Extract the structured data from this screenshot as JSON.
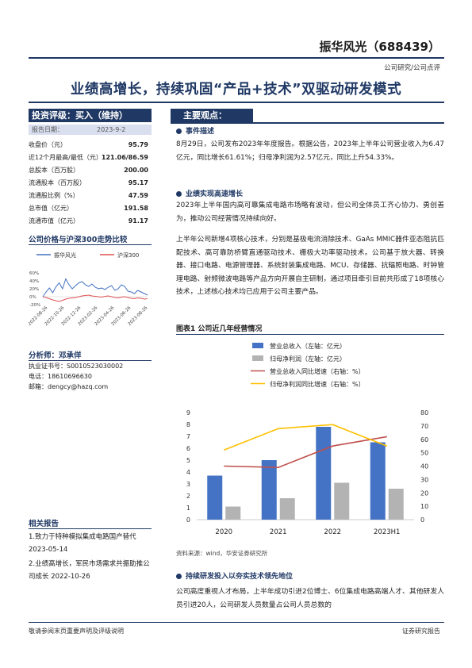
{
  "header": {
    "company": "振华风光（688439）",
    "category": "公司研究/公司点评",
    "title": "业绩高增长，持续巩固“产品+技术”双驱动研发模式"
  },
  "rating": {
    "label": "投资评级：买入（维持）",
    "date_label": "报告日期：",
    "date_value": "2023-9-2"
  },
  "stats": [
    {
      "label": "收盘价（元）",
      "value": "95.79"
    },
    {
      "label": "近12个月最高/最低（元）",
      "value": "121.06/86.59"
    },
    {
      "label": "总股本（百万股）",
      "value": "200.00"
    },
    {
      "label": "流通股本（百万股）",
      "value": "95.17"
    },
    {
      "label": "流通股比例（%）",
      "value": "47.59"
    },
    {
      "label": "总市值（亿元）",
      "value": "191.58"
    },
    {
      "label": "流通市值（亿元）",
      "value": "91.17"
    }
  ],
  "price_chart": {
    "title": "公司价格与沪深300走势比较",
    "legend": [
      "振华风光",
      "沪深300"
    ],
    "yticks": [
      "60%",
      "40%",
      "20%",
      "0%",
      "-20%"
    ],
    "xticks": [
      "2022-08-26",
      "2022-10-26",
      "2022-12-26",
      "2023-02-26",
      "2023-04-26",
      "2023-06-26",
      "2023-08-26"
    ],
    "colors": {
      "company": "#4472c4",
      "index": "#e05252"
    },
    "company_pct": [
      0,
      12,
      22,
      10,
      25,
      35,
      20,
      45,
      30,
      20,
      28,
      35,
      38,
      30,
      26,
      32,
      24,
      20,
      22,
      18,
      24,
      28,
      16,
      20,
      30,
      26,
      14,
      12,
      8,
      16,
      12,
      8,
      4
    ],
    "index_pct": [
      0,
      -2,
      -5,
      -8,
      -10,
      -12,
      -9,
      -6,
      -4,
      -3,
      -2,
      0,
      2,
      3,
      4,
      2,
      1,
      0,
      -1,
      1,
      2,
      0,
      -2,
      -3,
      -1,
      0,
      -2,
      -4,
      -5,
      -3,
      -4,
      -6,
      -5
    ]
  },
  "analyst": {
    "title": "分析师：邓承佯",
    "cert": "执业证书号：S0010523030002",
    "phone": "电话：18610696630",
    "email": "邮箱：dengcy@hazq.com"
  },
  "related": {
    "title": "相关报告",
    "items": [
      "1.致力于特种模拟集成电路国产替代 2023-05-14",
      "2.业绩高增长，军民市场需求共振助推公司成长 2022-10-26"
    ]
  },
  "main": {
    "heading": "主要观点：",
    "sections": [
      {
        "title": "事件描述",
        "paragraphs": [
          "8月29日，公司发布2023年年度报告。根据公告，2023年上半年公司营业收入为6.47亿元，同比增长61.61%；归母净利润为2.57亿元，同比上升54.33%。"
        ]
      },
      {
        "title": "业绩实现高速增长",
        "paragraphs": [
          "2023年上半年国内高可靠集成电路市场略有波动，但公司全体员工齐心协力、勇创善为，推动公司经营情况持续向好。",
          "上半年公司新增4项核心技术，分别是基极电流消除技术、GaAs MMIC器件亚态阻抗匹配技术、高可靠防桥臂直通驱动技术、栅极大功率驱动技术。公司基于放大器、转换器、接口电路、电源管理器、系统封装集成电路、MCU、存储器、抗辐照电路、时钟管理电路、射频微波电路等产品方向开展自主研制，通过项目牵引目前共形成了18项核心技术，上述核心技术均已应用于公司主要产品。"
        ]
      },
      {
        "title": "持续研发投入以夯实技术领先地位",
        "paragraphs": [
          "公司高度重视人才布局，上半年成功引进2位博士、6位集成电路高端人才、其他研发人员引进20人，公司研发人员数量占公司人员总数的"
        ]
      }
    ]
  },
  "figure": {
    "title": "图表1 公司近几年经营情况",
    "source": "资料来源：wind，华安证券研究所"
  },
  "chart_data": {
    "type": "bar",
    "categories": [
      "2020",
      "2021",
      "2022",
      "2023H1"
    ],
    "series": [
      {
        "name": "营业总收入（左轴：亿元）",
        "type": "bar",
        "axis": "left",
        "color": "#4472c4",
        "values": [
          3.7,
          5.0,
          7.8,
          6.5
        ]
      },
      {
        "name": "归母净利润（左轴：亿元）",
        "type": "bar",
        "axis": "left",
        "color": "#b3b3b3",
        "values": [
          1.1,
          1.8,
          3.1,
          2.6
        ]
      },
      {
        "name": "营业总收入同比增速（右轴：%）",
        "type": "line",
        "axis": "right",
        "color": "#c0504d",
        "values": [
          40,
          39,
          55,
          62
        ]
      },
      {
        "name": "归母净利润同比增速（右轴：%）",
        "type": "line",
        "axis": "right",
        "color": "#ffc000",
        "values": [
          52,
          68,
          71,
          55
        ]
      }
    ],
    "ylim_left": [
      0,
      9
    ],
    "ylim_right": [
      0,
      80
    ],
    "yticks_left": [
      "0",
      "1",
      "2",
      "3",
      "4",
      "5",
      "6",
      "7",
      "8",
      "9"
    ],
    "yticks_right": [
      "0",
      "10",
      "20",
      "30",
      "40",
      "50",
      "60",
      "70",
      "80"
    ],
    "legend_position": "top"
  },
  "footer": {
    "left": "敬请参阅末页重要声明及评级说明",
    "right": "证券研究报告"
  }
}
